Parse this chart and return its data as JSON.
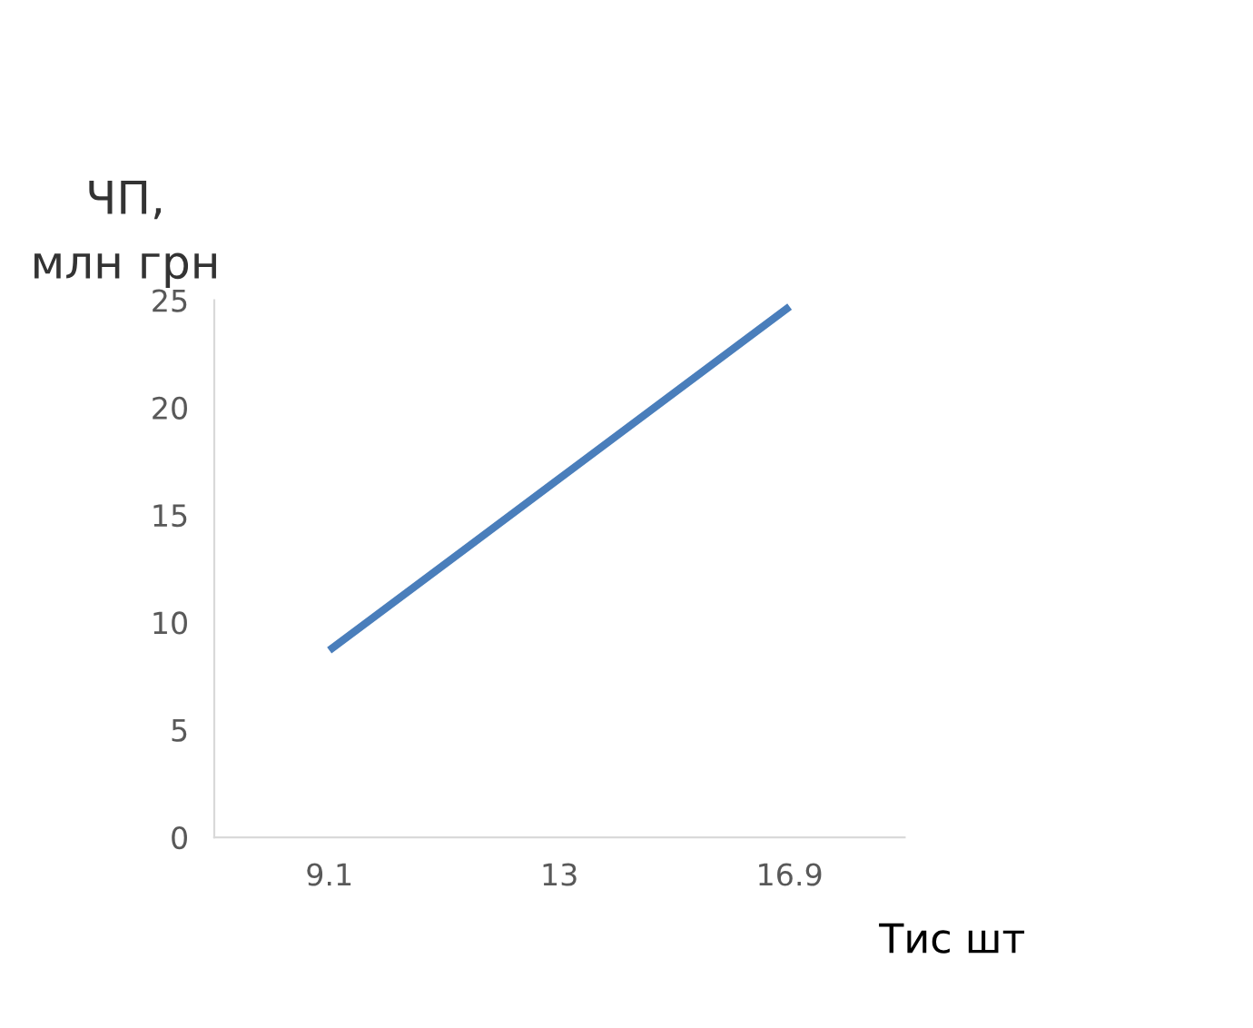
{
  "chart_data": {
    "type": "line",
    "ylabel": "ЧП,\nмлн грн",
    "xlabel": "Тис шт",
    "categories": [
      "9.1",
      "13",
      "16.9"
    ],
    "series": [
      {
        "color": "#4a7ebb",
        "values": [
          8.7,
          16.7,
          24.7
        ]
      }
    ],
    "ylim": [
      0,
      25
    ],
    "yticks": [
      0,
      5,
      10,
      15,
      20,
      25
    ],
    "grid": false,
    "legend": false
  }
}
